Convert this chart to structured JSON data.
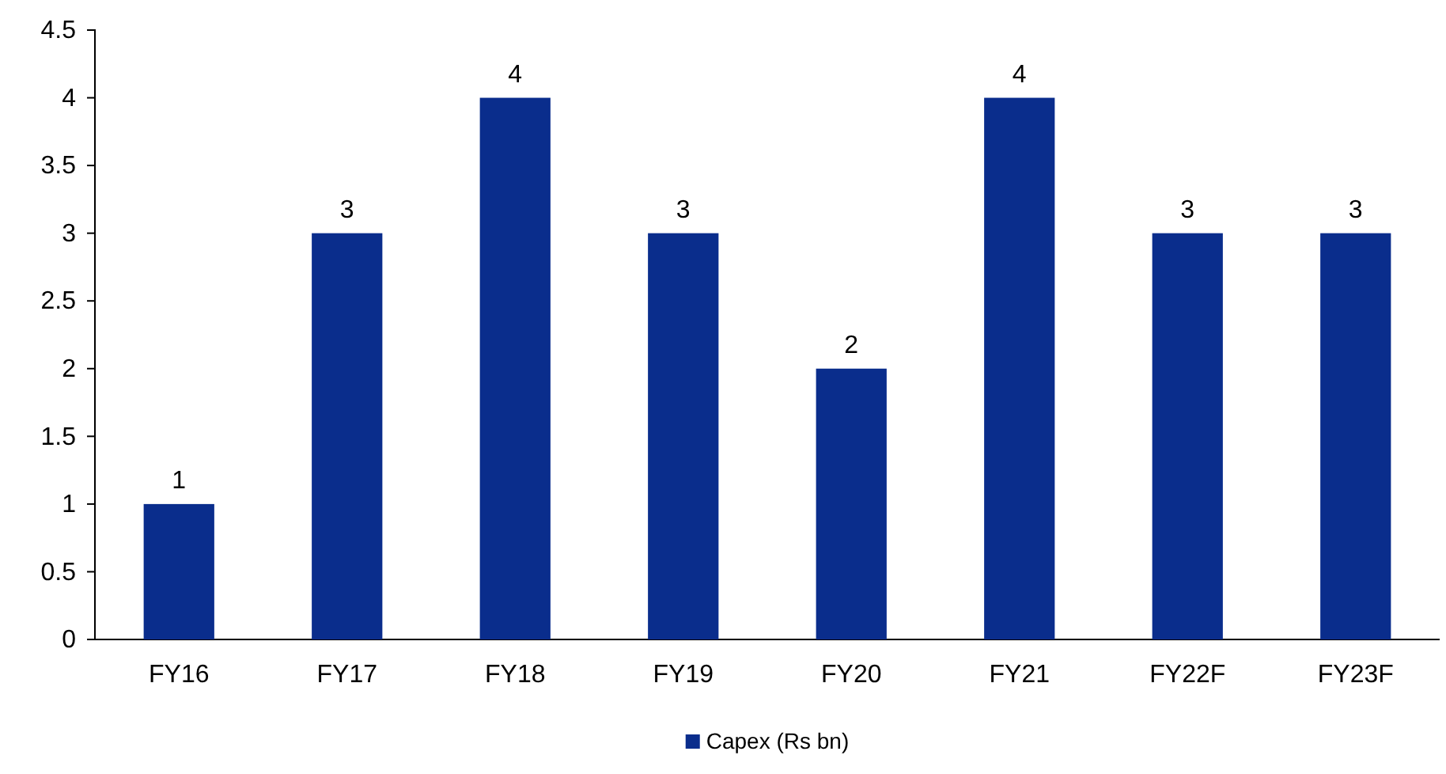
{
  "chart_data": {
    "type": "bar",
    "categories": [
      "FY16",
      "FY17",
      "FY18",
      "FY19",
      "FY20",
      "FY21",
      "FY22F",
      "FY23F"
    ],
    "series": [
      {
        "name": "Capex (Rs bn)",
        "color": "#0a2d8c",
        "values": [
          1,
          3,
          4,
          3,
          2,
          4,
          3,
          3
        ]
      }
    ],
    "ylim": [
      0,
      4.5
    ],
    "yticks": [
      0,
      0.5,
      1,
      1.5,
      2,
      2.5,
      3,
      3.5,
      4,
      4.5
    ],
    "data_labels": true,
    "legend": "bottom",
    "grid": false
  }
}
